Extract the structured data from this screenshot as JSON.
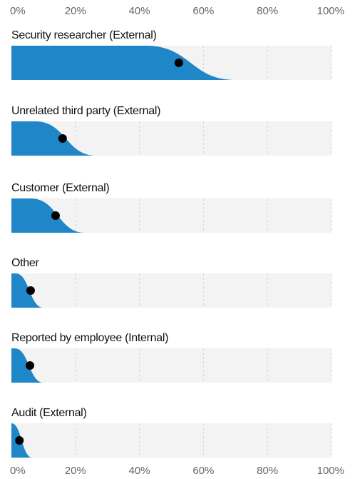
{
  "chart_data": {
    "type": "interval",
    "categories": [
      "Security researcher (External)",
      "Unrelated third party (External)",
      "Customer (External)",
      "Other",
      "Reported by employee (Internal)",
      "Audit (External)"
    ],
    "values": [
      52.3,
      16,
      13.8,
      6,
      5.8,
      2.5
    ],
    "band_start": [
      42,
      7.5,
      6,
      1.3,
      1,
      0
    ],
    "band_end": [
      70,
      26.5,
      23,
      10,
      10,
      6.5
    ],
    "color": "#1f86c8",
    "xlim": [
      0,
      100
    ],
    "xticks": [
      {
        "value": 0,
        "label": "0%"
      },
      {
        "value": 20,
        "label": "20%"
      },
      {
        "value": 40,
        "label": "40%"
      },
      {
        "value": 60,
        "label": "60%"
      },
      {
        "value": 80,
        "label": "80%"
      },
      {
        "value": 100,
        "label": "100%"
      }
    ],
    "grid": true
  }
}
